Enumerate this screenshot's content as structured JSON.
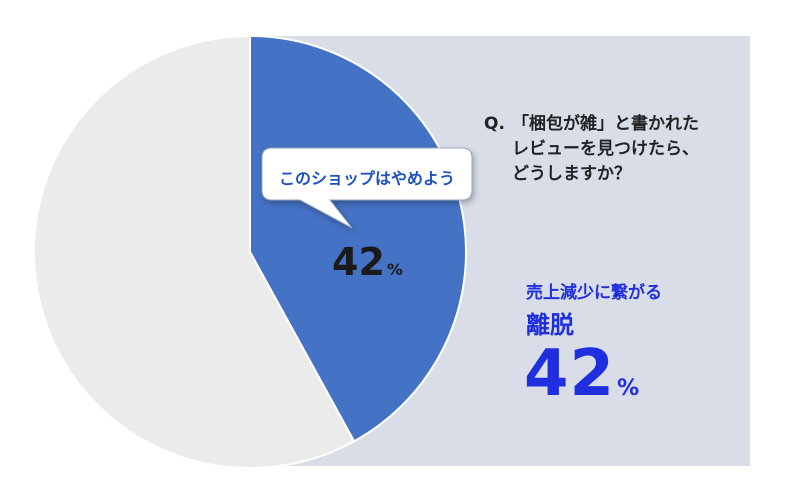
{
  "question": {
    "prefix": "Q.",
    "line1": "「梱包が雑」と書かれた",
    "line2": "レビューを見つけたら、",
    "line3": "どうしますか？"
  },
  "bubble_label": "このショップはやめよう",
  "result": {
    "effect": "売上減少に繋がる",
    "label": "離脱",
    "value": "42",
    "unit": "%"
  },
  "chart_data": {
    "type": "pie",
    "slices": [
      {
        "label": "このショップはやめよう",
        "value": 42,
        "unit": "%",
        "color": "#4472c4"
      },
      {
        "value": 58,
        "color": "#ebebeb"
      }
    ],
    "highlight_color": "#4472c4",
    "other_color": "#ebebeb",
    "panel_color": "#d8dde7"
  }
}
